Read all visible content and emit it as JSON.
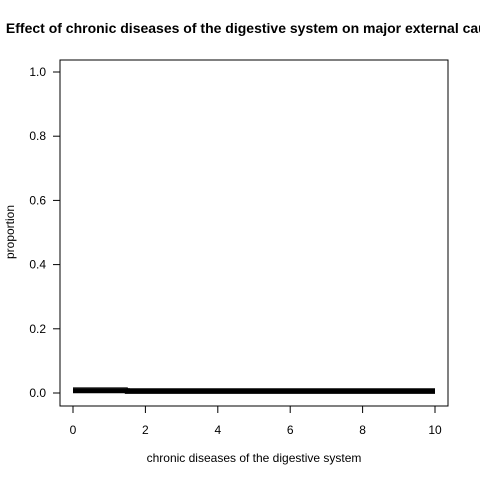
{
  "chart_data": {
    "type": "line",
    "title": "Effect of chronic diseases of the digestive system on major external causes",
    "xlabel": "chronic diseases of the digestive system",
    "ylabel": "proportion",
    "xlim": [
      0,
      10
    ],
    "ylim": [
      0,
      1
    ],
    "xticks": [
      "0",
      "2",
      "4",
      "6",
      "8",
      "10"
    ],
    "yticks": [
      "0.0",
      "0.2",
      "0.4",
      "0.6",
      "0.8",
      "1.0"
    ],
    "grid": false,
    "series": [
      {
        "points": [
          [
            0,
            0.016
          ],
          [
            1.5,
            0.016
          ],
          [
            1.5,
            0.013
          ],
          [
            10,
            0.013
          ]
        ],
        "width": 1
      },
      {
        "points": [
          [
            0,
            0.007
          ],
          [
            1.5,
            0.007
          ],
          [
            1.5,
            0.005
          ],
          [
            10,
            0.005
          ]
        ],
        "width": 5
      }
    ]
  }
}
